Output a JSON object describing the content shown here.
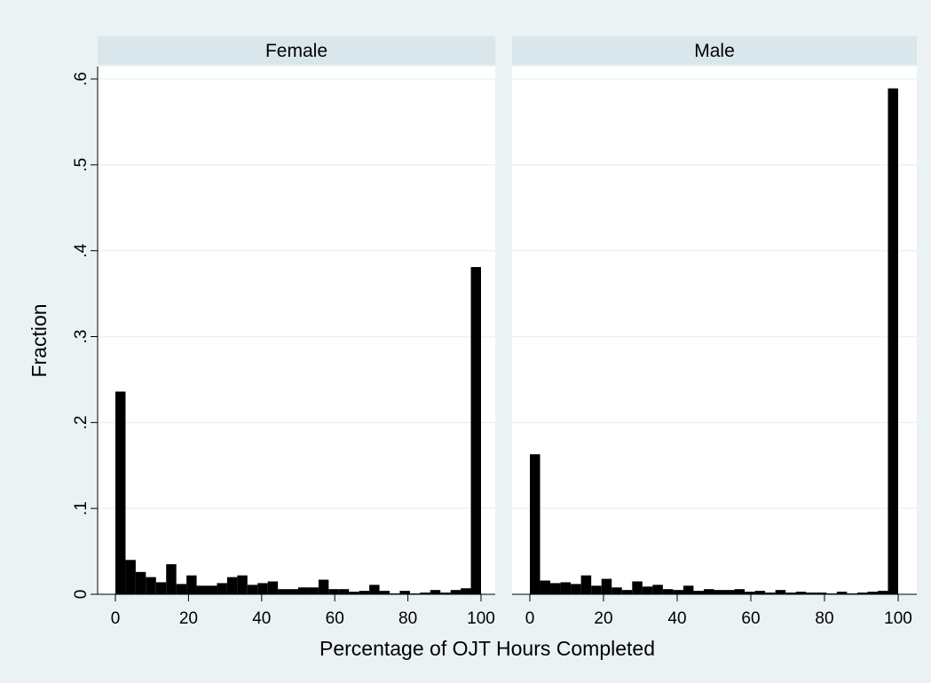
{
  "colors": {
    "outer_background": "#eaf2f3",
    "panel_background": "#ffffff",
    "strip_background": "#d9e6eb",
    "bar_fill": "#000000",
    "grid": "#eaf2f3"
  },
  "figure": {
    "ylabel": "Fraction",
    "xlabel": "Percentage of OJT Hours Completed"
  },
  "chart_data": [
    {
      "type": "bar",
      "panel": "Female",
      "xlim": [
        0,
        100
      ],
      "ylim": [
        0,
        0.6
      ],
      "x_ticks": [
        0,
        20,
        40,
        60,
        80,
        100
      ],
      "x_tick_labels": [
        "0",
        "20",
        "40",
        "60",
        "80",
        "100"
      ],
      "y_ticks": [
        0,
        0.1,
        0.2,
        0.3,
        0.4,
        0.5,
        0.6
      ],
      "y_tick_labels": [
        "0",
        ".1",
        ".2",
        ".3",
        ".4",
        ".5",
        ".6"
      ],
      "grid": true,
      "bin_width": 2.778,
      "x": [
        1.389,
        4.167,
        6.944,
        9.722,
        12.5,
        15.278,
        18.056,
        20.833,
        23.611,
        26.389,
        29.167,
        31.944,
        34.722,
        37.5,
        40.278,
        43.056,
        45.833,
        48.611,
        51.389,
        54.167,
        56.944,
        59.722,
        62.5,
        65.278,
        68.056,
        70.833,
        73.611,
        76.389,
        79.167,
        81.944,
        84.722,
        87.5,
        90.278,
        93.056,
        95.833,
        98.611
      ],
      "values": [
        0.236,
        0.04,
        0.026,
        0.02,
        0.014,
        0.035,
        0.012,
        0.022,
        0.01,
        0.01,
        0.013,
        0.02,
        0.022,
        0.011,
        0.013,
        0.015,
        0.006,
        0.006,
        0.008,
        0.008,
        0.017,
        0.006,
        0.006,
        0.003,
        0.004,
        0.011,
        0.004,
        0.001,
        0.004,
        0.001,
        0.002,
        0.005,
        0.002,
        0.005,
        0.007,
        0.381
      ]
    },
    {
      "type": "bar",
      "panel": "Male",
      "xlim": [
        0,
        100
      ],
      "ylim": [
        0,
        0.6
      ],
      "x_ticks": [
        0,
        20,
        40,
        60,
        80,
        100
      ],
      "x_tick_labels": [
        "0",
        "20",
        "40",
        "60",
        "80",
        "100"
      ],
      "grid": true,
      "bin_width": 2.778,
      "x": [
        1.389,
        4.167,
        6.944,
        9.722,
        12.5,
        15.278,
        18.056,
        20.833,
        23.611,
        26.389,
        29.167,
        31.944,
        34.722,
        37.5,
        40.278,
        43.056,
        45.833,
        48.611,
        51.389,
        54.167,
        56.944,
        59.722,
        62.5,
        65.278,
        68.056,
        70.833,
        73.611,
        76.389,
        79.167,
        81.944,
        84.722,
        87.5,
        90.278,
        93.056,
        95.833,
        98.611
      ],
      "values": [
        0.163,
        0.016,
        0.013,
        0.014,
        0.012,
        0.022,
        0.01,
        0.018,
        0.008,
        0.005,
        0.015,
        0.009,
        0.011,
        0.006,
        0.005,
        0.01,
        0.004,
        0.006,
        0.005,
        0.005,
        0.006,
        0.003,
        0.004,
        0.002,
        0.005,
        0.002,
        0.003,
        0.002,
        0.002,
        0.001,
        0.003,
        0.001,
        0.002,
        0.003,
        0.004,
        0.589
      ]
    }
  ]
}
